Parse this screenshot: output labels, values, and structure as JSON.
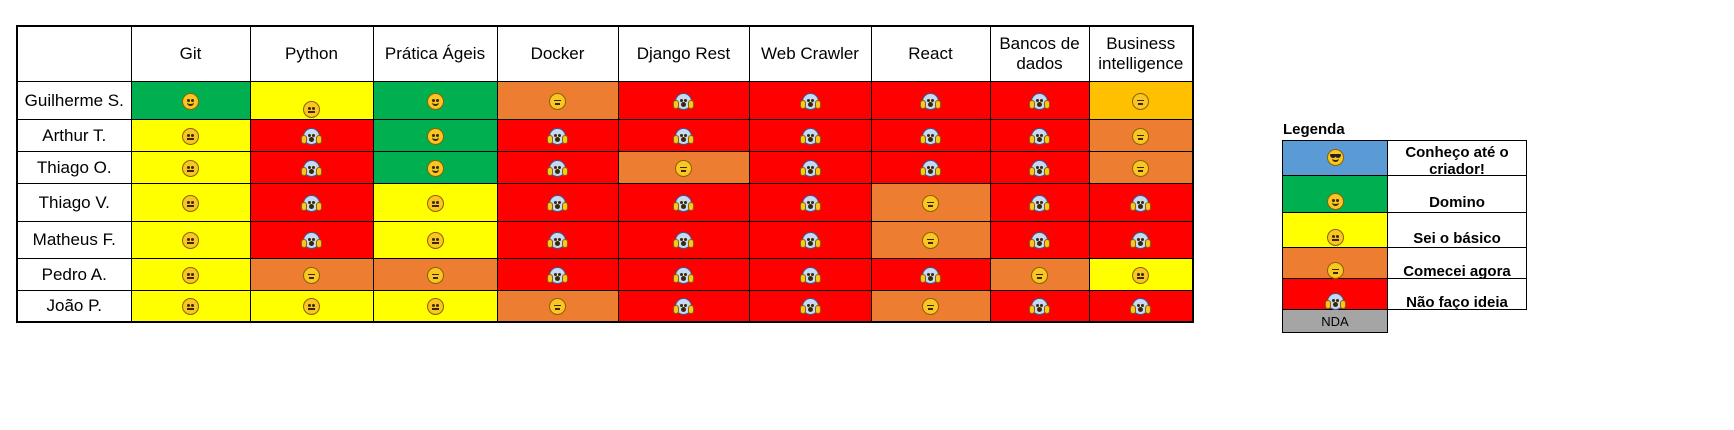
{
  "columns": [
    "Git",
    "Python",
    "Prática Ágeis",
    "Docker",
    "Django Rest",
    "Web Crawler",
    "React",
    "Bancos de dados",
    "Business intelligence"
  ],
  "rows": [
    {
      "name": "Guilherme S.",
      "cells": [
        "domino",
        "basico",
        "domino",
        "comecei",
        "naofaco",
        "naofaco",
        "naofaco",
        "naofaco",
        "amber"
      ]
    },
    {
      "name": "Arthur T.",
      "cells": [
        "basico",
        "naofaco",
        "domino",
        "naofaco",
        "naofaco",
        "naofaco",
        "naofaco",
        "naofaco",
        "comecei"
      ]
    },
    {
      "name": "Thiago O.",
      "cells": [
        "basico",
        "naofaco",
        "domino",
        "naofaco",
        "comecei",
        "naofaco",
        "naofaco",
        "naofaco",
        "comecei"
      ]
    },
    {
      "name": "Thiago V.",
      "cells": [
        "basico",
        "naofaco",
        "basico",
        "naofaco",
        "naofaco",
        "naofaco",
        "comecei",
        "naofaco",
        "naofaco"
      ]
    },
    {
      "name": "Matheus F.",
      "cells": [
        "basico",
        "naofaco",
        "basico",
        "naofaco",
        "naofaco",
        "naofaco",
        "comecei",
        "naofaco",
        "naofaco"
      ]
    },
    {
      "name": "Pedro A.",
      "cells": [
        "basico",
        "comecei",
        "comecei",
        "naofaco",
        "naofaco",
        "naofaco",
        "naofaco",
        "comecei",
        "basico"
      ]
    },
    {
      "name": "João P.",
      "cells": [
        "basico",
        "basico",
        "basico",
        "comecei",
        "naofaco",
        "naofaco",
        "comecei",
        "naofaco",
        "naofaco"
      ]
    }
  ],
  "levels": {
    "conheco": {
      "label": "Conheço até o criador!",
      "color": "#5b9bd5",
      "icon": "cool-face-icon"
    },
    "domino": {
      "label": "Domino",
      "color": "#00b050",
      "icon": "smile-face-icon"
    },
    "basico": {
      "label": "Sei o básico",
      "color": "#ffff00",
      "icon": "neutral-face-icon"
    },
    "comecei": {
      "label": "Comecei agora",
      "color": "#ed7d31",
      "icon": "tired-face-icon"
    },
    "naofaco": {
      "label": "Não faço ideia",
      "color": "#ff0000",
      "icon": "scream-face-icon"
    },
    "nda": {
      "label": "NDA",
      "color": "#a5a5a5",
      "icon": ""
    },
    "amber": {
      "label": "",
      "color": "#ffc000",
      "icon": "tired-face-icon"
    }
  },
  "legend": {
    "title": "Legenda",
    "order": [
      "conheco",
      "domino",
      "basico",
      "comecei",
      "naofaco",
      "nda"
    ]
  }
}
